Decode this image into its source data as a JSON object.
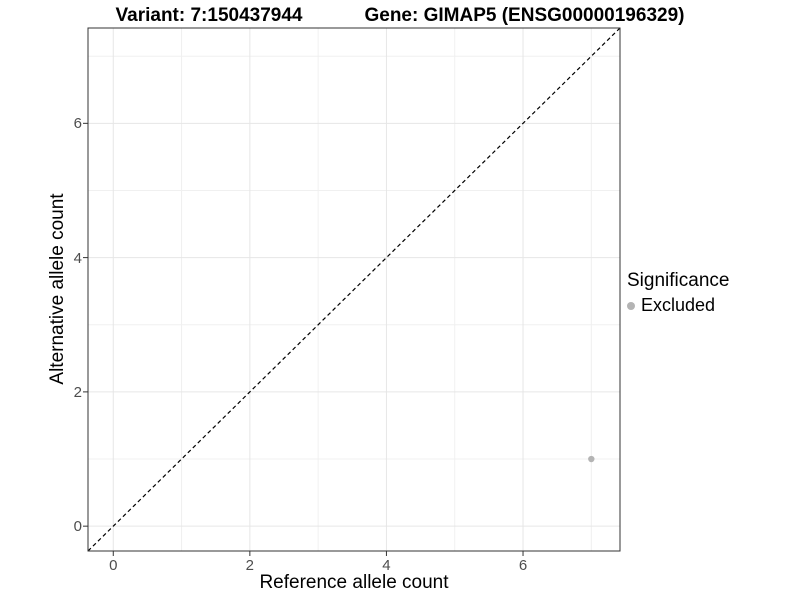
{
  "figure": {
    "title_left": "Variant: 7:150437944",
    "title_right": "Gene: GIMAP5 (ENSG00000196329)"
  },
  "chart_data": {
    "type": "scatter",
    "title": "Variant: 7:150437944    Gene: GIMAP5 (ENSG00000196329)",
    "xlabel": "Reference allele count",
    "ylabel": "Alternative allele count",
    "xlim": [
      -0.37,
      7.42
    ],
    "ylim": [
      -0.37,
      7.42
    ],
    "x_major_ticks": [
      0,
      2,
      4,
      6
    ],
    "y_major_ticks": [
      0,
      2,
      4,
      6
    ],
    "x_minor_gridlines": [
      1,
      3,
      5,
      7
    ],
    "y_minor_gridlines": [
      1,
      3,
      5,
      7
    ],
    "grid": "on",
    "identity_line": {
      "slope": 1,
      "intercept": 0,
      "style": "dashed",
      "color": "#000000"
    },
    "series": [
      {
        "name": "Excluded",
        "color": "#b4b4b4",
        "points": [
          {
            "x": 7,
            "y": 1
          }
        ]
      }
    ],
    "legend": {
      "title": "Significance",
      "position": "right",
      "entries": [
        {
          "label": "Excluded",
          "color": "#b4b4b4"
        }
      ]
    },
    "colors": {
      "panel_background": "#ffffff",
      "major_grid": "#e6e6e6",
      "minor_grid": "#f0f0f0",
      "panel_border": "#333333",
      "tick_mark": "#333333",
      "tick_label": "#4d4d4d",
      "point": "#b4b4b4"
    }
  }
}
